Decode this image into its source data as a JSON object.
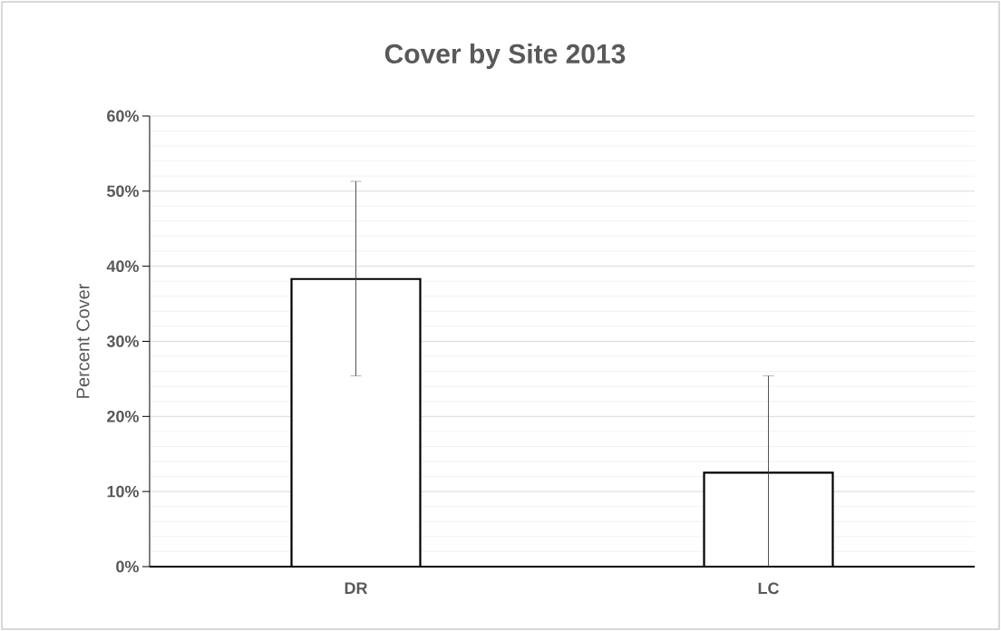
{
  "chart_data": {
    "type": "bar",
    "title": "Cover by Site 2013",
    "ylabel": "Percent Cover",
    "categories": [
      "DR",
      "LC"
    ],
    "values": [
      38.3,
      12.5
    ],
    "errors": [
      [
        25.4,
        51.3
      ],
      [
        0,
        25.4
      ]
    ],
    "color": "#ffffff",
    "ylim": [
      0,
      60
    ],
    "yticks": [
      {
        "value": 0,
        "label": "0%"
      },
      {
        "value": 10,
        "label": "10%"
      },
      {
        "value": 20,
        "label": "20%"
      },
      {
        "value": 30,
        "label": "30%"
      },
      {
        "value": 40,
        "label": "40%"
      },
      {
        "value": 50,
        "label": "50%"
      },
      {
        "value": 60,
        "label": "60%"
      }
    ],
    "grid": "y"
  }
}
